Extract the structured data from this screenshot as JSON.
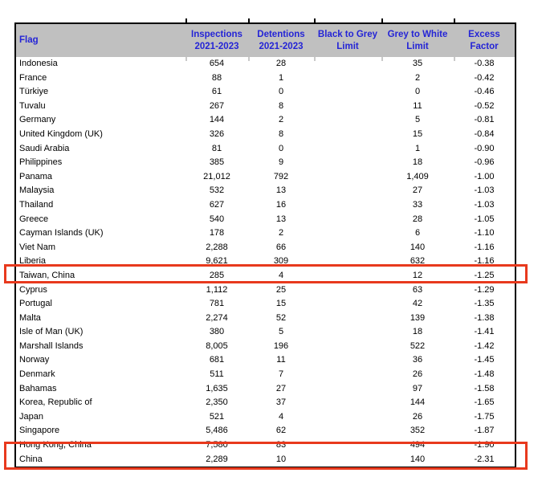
{
  "colors": {
    "header_bg": "#c0c0c0",
    "header_text_blue": "#2424d6",
    "highlight_red": "#e8391d",
    "border_black": "#000000"
  },
  "table": {
    "header": {
      "flag": "Flag",
      "inspections_l1": "Inspections",
      "inspections_l2": "2021-2023",
      "detentions_l1": "Detentions",
      "detentions_l2": "2021-2023",
      "black_to_grey_l1": "Black to Grey",
      "black_to_grey_l2": "Limit",
      "grey_to_white_l1": "Grey to White",
      "grey_to_white_l2": "Limit",
      "excess_l1": "Excess",
      "excess_l2": "Factor"
    },
    "rows": [
      {
        "flag": "Indonesia",
        "inspections": "654",
        "detentions": "28",
        "black_to_grey": "",
        "grey_to_white": "35",
        "excess_factor": "-0.38",
        "highlighted": false
      },
      {
        "flag": "France",
        "inspections": "88",
        "detentions": "1",
        "black_to_grey": "",
        "grey_to_white": "2",
        "excess_factor": "-0.42",
        "highlighted": false
      },
      {
        "flag": "Türkiye",
        "inspections": "61",
        "detentions": "0",
        "black_to_grey": "",
        "grey_to_white": "0",
        "excess_factor": "-0.46",
        "highlighted": false
      },
      {
        "flag": "Tuvalu",
        "inspections": "267",
        "detentions": "8",
        "black_to_grey": "",
        "grey_to_white": "11",
        "excess_factor": "-0.52",
        "highlighted": false
      },
      {
        "flag": "Germany",
        "inspections": "144",
        "detentions": "2",
        "black_to_grey": "",
        "grey_to_white": "5",
        "excess_factor": "-0.81",
        "highlighted": false
      },
      {
        "flag": "United Kingdom (UK)",
        "inspections": "326",
        "detentions": "8",
        "black_to_grey": "",
        "grey_to_white": "15",
        "excess_factor": "-0.84",
        "highlighted": false
      },
      {
        "flag": "Saudi Arabia",
        "inspections": "81",
        "detentions": "0",
        "black_to_grey": "",
        "grey_to_white": "1",
        "excess_factor": "-0.90",
        "highlighted": false
      },
      {
        "flag": "Philippines",
        "inspections": "385",
        "detentions": "9",
        "black_to_grey": "",
        "grey_to_white": "18",
        "excess_factor": "-0.96",
        "highlighted": false
      },
      {
        "flag": "Panama",
        "inspections": "21,012",
        "detentions": "792",
        "black_to_grey": "",
        "grey_to_white": "1,409",
        "excess_factor": "-1.00",
        "highlighted": false
      },
      {
        "flag": "Malaysia",
        "inspections": "532",
        "detentions": "13",
        "black_to_grey": "",
        "grey_to_white": "27",
        "excess_factor": "-1.03",
        "highlighted": false
      },
      {
        "flag": "Thailand",
        "inspections": "627",
        "detentions": "16",
        "black_to_grey": "",
        "grey_to_white": "33",
        "excess_factor": "-1.03",
        "highlighted": false
      },
      {
        "flag": "Greece",
        "inspections": "540",
        "detentions": "13",
        "black_to_grey": "",
        "grey_to_white": "28",
        "excess_factor": "-1.05",
        "highlighted": false
      },
      {
        "flag": "Cayman Islands (UK)",
        "inspections": "178",
        "detentions": "2",
        "black_to_grey": "",
        "grey_to_white": "6",
        "excess_factor": "-1.10",
        "highlighted": false
      },
      {
        "flag": "Viet Nam",
        "inspections": "2,288",
        "detentions": "66",
        "black_to_grey": "",
        "grey_to_white": "140",
        "excess_factor": "-1.16",
        "highlighted": false
      },
      {
        "flag": "Liberia",
        "inspections": "9,621",
        "detentions": "309",
        "black_to_grey": "",
        "grey_to_white": "632",
        "excess_factor": "-1.16",
        "highlighted": false
      },
      {
        "flag": "Taiwan, China",
        "inspections": "285",
        "detentions": "4",
        "black_to_grey": "",
        "grey_to_white": "12",
        "excess_factor": "-1.25",
        "highlighted": true
      },
      {
        "flag": "Cyprus",
        "inspections": "1,112",
        "detentions": "25",
        "black_to_grey": "",
        "grey_to_white": "63",
        "excess_factor": "-1.29",
        "highlighted": false
      },
      {
        "flag": "Portugal",
        "inspections": "781",
        "detentions": "15",
        "black_to_grey": "",
        "grey_to_white": "42",
        "excess_factor": "-1.35",
        "highlighted": false
      },
      {
        "flag": "Malta",
        "inspections": "2,274",
        "detentions": "52",
        "black_to_grey": "",
        "grey_to_white": "139",
        "excess_factor": "-1.38",
        "highlighted": false
      },
      {
        "flag": "Isle of Man (UK)",
        "inspections": "380",
        "detentions": "5",
        "black_to_grey": "",
        "grey_to_white": "18",
        "excess_factor": "-1.41",
        "highlighted": false
      },
      {
        "flag": "Marshall Islands",
        "inspections": "8,005",
        "detentions": "196",
        "black_to_grey": "",
        "grey_to_white": "522",
        "excess_factor": "-1.42",
        "highlighted": false
      },
      {
        "flag": "Norway",
        "inspections": "681",
        "detentions": "11",
        "black_to_grey": "",
        "grey_to_white": "36",
        "excess_factor": "-1.45",
        "highlighted": false
      },
      {
        "flag": "Denmark",
        "inspections": "511",
        "detentions": "7",
        "black_to_grey": "",
        "grey_to_white": "26",
        "excess_factor": "-1.48",
        "highlighted": false
      },
      {
        "flag": "Bahamas",
        "inspections": "1,635",
        "detentions": "27",
        "black_to_grey": "",
        "grey_to_white": "97",
        "excess_factor": "-1.58",
        "highlighted": false
      },
      {
        "flag": "Korea, Republic of",
        "inspections": "2,350",
        "detentions": "37",
        "black_to_grey": "",
        "grey_to_white": "144",
        "excess_factor": "-1.65",
        "highlighted": false
      },
      {
        "flag": "Japan",
        "inspections": "521",
        "detentions": "4",
        "black_to_grey": "",
        "grey_to_white": "26",
        "excess_factor": "-1.75",
        "highlighted": false
      },
      {
        "flag": "Singapore",
        "inspections": "5,486",
        "detentions": "62",
        "black_to_grey": "",
        "grey_to_white": "352",
        "excess_factor": "-1.87",
        "highlighted": false
      },
      {
        "flag": "Hong Kong, China",
        "inspections": "7,580",
        "detentions": "83",
        "black_to_grey": "",
        "grey_to_white": "494",
        "excess_factor": "-1.90",
        "highlighted": true
      },
      {
        "flag": "China",
        "inspections": "2,289",
        "detentions": "10",
        "black_to_grey": "",
        "grey_to_white": "140",
        "excess_factor": "-2.31",
        "highlighted": true
      }
    ],
    "highlighted_flags": [
      "Taiwan, China",
      "Hong Kong, China",
      "China"
    ]
  }
}
